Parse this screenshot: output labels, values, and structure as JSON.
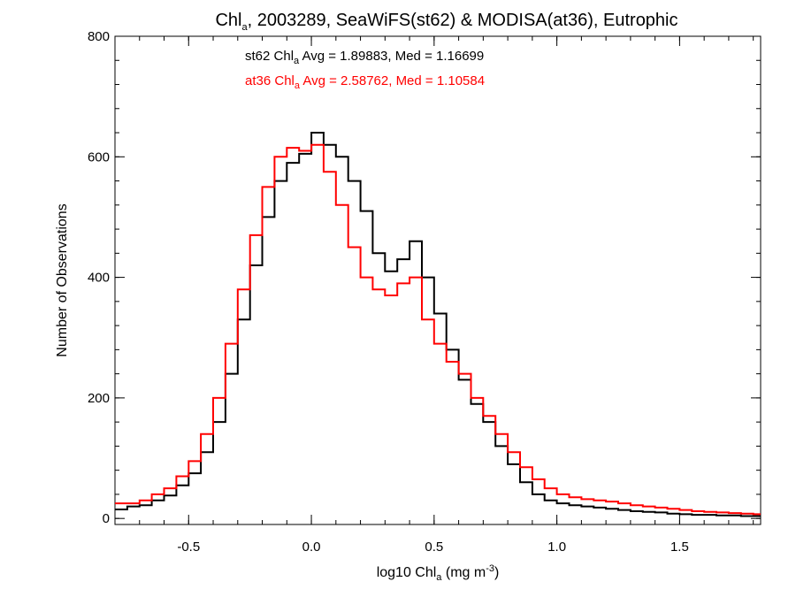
{
  "chart_data": {
    "type": "line",
    "step": true,
    "title": {
      "prefix": "Chl",
      "sub": "a",
      "suffix": ", 2003289, SeaWiFS(st62) & MODISA(at36), Eutrophic"
    },
    "xlabel": {
      "prefix": "log10 Chl",
      "sub": "a",
      "mid": " (mg m",
      "sup": "-3",
      "suffix": ")"
    },
    "ylabel": "Number of Observations",
    "xlim": [
      -0.8,
      1.83
    ],
    "ylim": [
      -10,
      800
    ],
    "x_ticks": [
      {
        "value": -0.5,
        "label": "-0.5"
      },
      {
        "value": 0.0,
        "label": "0.0"
      },
      {
        "value": 0.5,
        "label": "0.5"
      },
      {
        "value": 1.0,
        "label": "1.0"
      },
      {
        "value": 1.5,
        "label": "1.5"
      }
    ],
    "x_minor_step": 0.1,
    "y_ticks": [
      {
        "value": 0,
        "label": "0"
      },
      {
        "value": 200,
        "label": "200"
      },
      {
        "value": 400,
        "label": "400"
      },
      {
        "value": 600,
        "label": "600"
      },
      {
        "value": 800,
        "label": "800"
      }
    ],
    "y_minor_step": 40,
    "grid": false,
    "series": [
      {
        "name": "st62",
        "color": "#000000",
        "stats": {
          "prefix": "st62 Chl",
          "sub": "a",
          "suffix": " Avg = 1.89883, Med = 1.16699"
        },
        "x": [
          -0.8,
          -0.75,
          -0.7,
          -0.65,
          -0.6,
          -0.55,
          -0.5,
          -0.45,
          -0.4,
          -0.35,
          -0.3,
          -0.25,
          -0.2,
          -0.15,
          -0.1,
          -0.05,
          0.0,
          0.05,
          0.1,
          0.15,
          0.2,
          0.25,
          0.3,
          0.35,
          0.4,
          0.45,
          0.5,
          0.55,
          0.6,
          0.65,
          0.7,
          0.75,
          0.8,
          0.85,
          0.9,
          0.95,
          1.0,
          1.05,
          1.1,
          1.15,
          1.2,
          1.25,
          1.3,
          1.35,
          1.4,
          1.45,
          1.5,
          1.55,
          1.6,
          1.65,
          1.7,
          1.75,
          1.8,
          1.83
        ],
        "y": [
          15,
          20,
          22,
          30,
          38,
          55,
          75,
          110,
          160,
          240,
          330,
          420,
          500,
          560,
          590,
          605,
          640,
          620,
          600,
          560,
          510,
          440,
          410,
          430,
          460,
          400,
          340,
          280,
          230,
          190,
          160,
          120,
          90,
          60,
          40,
          30,
          25,
          22,
          20,
          18,
          16,
          14,
          12,
          11,
          10,
          8,
          7,
          6,
          6,
          5,
          5,
          4,
          4,
          4
        ]
      },
      {
        "name": "at36",
        "color": "#ff0000",
        "stats": {
          "prefix": "at36 Chl",
          "sub": "a",
          "suffix": " Avg = 2.58762, Med = 1.10584"
        },
        "x": [
          -0.8,
          -0.75,
          -0.7,
          -0.65,
          -0.6,
          -0.55,
          -0.5,
          -0.45,
          -0.4,
          -0.35,
          -0.3,
          -0.25,
          -0.2,
          -0.15,
          -0.1,
          -0.05,
          0.0,
          0.05,
          0.1,
          0.15,
          0.2,
          0.25,
          0.3,
          0.35,
          0.4,
          0.45,
          0.5,
          0.55,
          0.6,
          0.65,
          0.7,
          0.75,
          0.8,
          0.85,
          0.9,
          0.95,
          1.0,
          1.05,
          1.1,
          1.15,
          1.2,
          1.25,
          1.3,
          1.35,
          1.4,
          1.45,
          1.5,
          1.55,
          1.6,
          1.65,
          1.7,
          1.75,
          1.8,
          1.83
        ],
        "y": [
          25,
          25,
          30,
          40,
          50,
          70,
          95,
          140,
          200,
          290,
          380,
          470,
          550,
          600,
          615,
          610,
          620,
          575,
          520,
          450,
          400,
          380,
          370,
          390,
          400,
          330,
          290,
          260,
          240,
          200,
          170,
          140,
          110,
          85,
          65,
          50,
          40,
          35,
          32,
          30,
          28,
          25,
          22,
          20,
          18,
          16,
          14,
          12,
          11,
          10,
          9,
          8,
          7,
          7
        ]
      }
    ]
  }
}
